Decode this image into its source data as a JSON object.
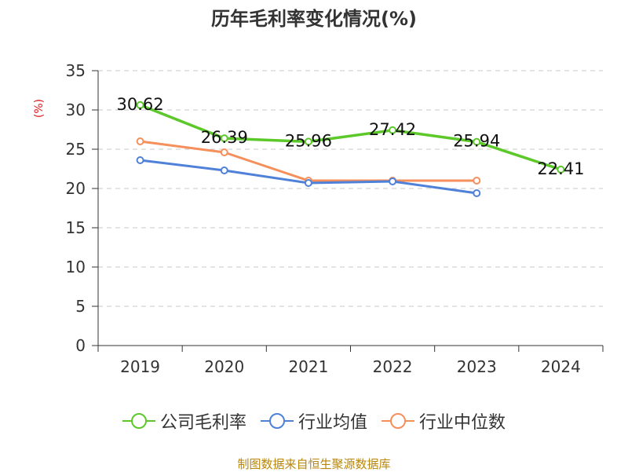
{
  "chart_data": {
    "type": "line",
    "title": "历年毛利率变化情况(%)",
    "ylabel": "(%)",
    "xlabel": "",
    "categories": [
      "2019",
      "2020",
      "2021",
      "2022",
      "2023",
      "2024"
    ],
    "ylim": [
      0,
      35
    ],
    "yticks": [
      0,
      5,
      10,
      15,
      20,
      25,
      30,
      35
    ],
    "grid": true,
    "legend_position": "bottom",
    "series": [
      {
        "name": "公司毛利率",
        "color": "#5cc82a",
        "values": [
          30.62,
          26.39,
          25.96,
          27.42,
          25.94,
          22.41
        ],
        "labels": [
          "30.62",
          "26.39",
          "25.96",
          "27.42",
          "25.94",
          "22.41"
        ]
      },
      {
        "name": "行业均值",
        "color": "#4f81d9",
        "values": [
          23.6,
          22.3,
          20.7,
          20.9,
          19.4,
          null
        ]
      },
      {
        "name": "行业中位数",
        "color": "#f58f5c",
        "values": [
          26.0,
          24.6,
          21.0,
          21.0,
          21.0,
          null
        ]
      }
    ]
  },
  "source": "制图数据来自恒生聚源数据库"
}
